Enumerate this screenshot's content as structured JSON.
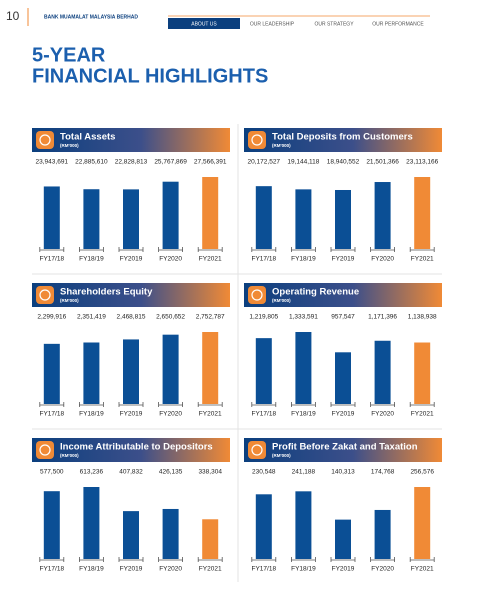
{
  "header": {
    "page_number": "10",
    "bank_name": "BANK MUAMALAT MALAYSIA BERHAD",
    "nav": [
      "ABOUT US",
      "OUR LEADERSHIP",
      "OUR STRATEGY",
      "OUR PERFORMANCE"
    ]
  },
  "title_lines": [
    "5-YEAR",
    "FINANCIAL HIGHLIGHTS"
  ],
  "chart_data": [
    {
      "type": "bar",
      "title": "Total Assets",
      "subtitle": "(RM'000)",
      "categories": [
        "FY17/18",
        "FY18/19",
        "FY2019",
        "FY2020",
        "FY2021"
      ],
      "values": [
        23943691,
        22885610,
        22828813,
        25767869,
        27566391
      ],
      "value_labels": [
        "23,943,691",
        "22,885,610",
        "22,828,813",
        "25,767,869",
        "27,566,391"
      ],
      "colors": [
        "#0b4f95",
        "#0b4f95",
        "#0b4f95",
        "#0b4f95",
        "#f08a36"
      ]
    },
    {
      "type": "bar",
      "title": "Total Deposits from Customers",
      "subtitle": "(RM'000)",
      "categories": [
        "FY17/18",
        "FY18/19",
        "FY2019",
        "FY2020",
        "FY2021"
      ],
      "values": [
        20172527,
        19144118,
        18940552,
        21501366,
        23113166
      ],
      "value_labels": [
        "20,172,527",
        "19,144,118",
        "18,940,552",
        "21,501,366",
        "23,113,166"
      ],
      "colors": [
        "#0b4f95",
        "#0b4f95",
        "#0b4f95",
        "#0b4f95",
        "#f08a36"
      ]
    },
    {
      "type": "bar",
      "title": "Shareholders Equity",
      "subtitle": "(RM'000)",
      "categories": [
        "FY17/18",
        "FY18/19",
        "FY2019",
        "FY2020",
        "FY2021"
      ],
      "values": [
        2299916,
        2351419,
        2468815,
        2650652,
        2752787
      ],
      "value_labels": [
        "2,299,916",
        "2,351,419",
        "2,468,815",
        "2,650,652",
        "2,752,787"
      ],
      "colors": [
        "#0b4f95",
        "#0b4f95",
        "#0b4f95",
        "#0b4f95",
        "#f08a36"
      ]
    },
    {
      "type": "bar",
      "title": "Operating Revenue",
      "subtitle": "(RM'000)",
      "categories": [
        "FY17/18",
        "FY18/19",
        "FY2019",
        "FY2020",
        "FY2021"
      ],
      "values": [
        1219805,
        1333591,
        957547,
        1171396,
        1138938
      ],
      "value_labels": [
        "1,219,805",
        "1,333,591",
        "957,547",
        "1,171,396",
        "1,138,938"
      ],
      "colors": [
        "#0b4f95",
        "#0b4f95",
        "#0b4f95",
        "#0b4f95",
        "#f08a36"
      ]
    },
    {
      "type": "bar",
      "title": "Income Attributable to Depositors",
      "subtitle": "(RM'000)",
      "categories": [
        "FY17/18",
        "FY18/19",
        "FY2019",
        "FY2020",
        "FY2021"
      ],
      "values": [
        577500,
        613236,
        407832,
        426135,
        338304
      ],
      "value_labels": [
        "577,500",
        "613,236",
        "407,832",
        "426,135",
        "338,304"
      ],
      "colors": [
        "#0b4f95",
        "#0b4f95",
        "#0b4f95",
        "#0b4f95",
        "#f08a36"
      ]
    },
    {
      "type": "bar",
      "title": "Profit Before Zakat and Taxation",
      "subtitle": "(RM'000)",
      "categories": [
        "FY17/18",
        "FY18/19",
        "FY2019",
        "FY2020",
        "FY2021"
      ],
      "values": [
        230548,
        241188,
        140313,
        174768,
        256576
      ],
      "value_labels": [
        "230,548",
        "241,188",
        "140,313",
        "174,768",
        "256,576"
      ],
      "colors": [
        "#0b4f95",
        "#0b4f95",
        "#0b4f95",
        "#0b4f95",
        "#f08a36"
      ]
    }
  ]
}
